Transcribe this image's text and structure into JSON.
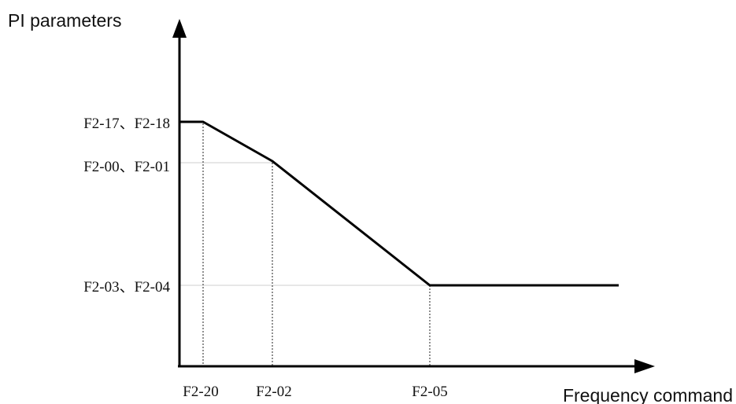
{
  "y_axis": {
    "title": "PI parameters"
  },
  "x_axis": {
    "title": "Frequency command"
  },
  "y_levels": [
    {
      "label": "F2-17、F2-18",
      "level": "high"
    },
    {
      "label": "F2-00、F2-01",
      "level": "mid"
    },
    {
      "label": "F2-03、F2-04",
      "level": "low"
    }
  ],
  "x_points": [
    {
      "label": "F2-20"
    },
    {
      "label": "F2-02"
    },
    {
      "label": "F2-05"
    }
  ],
  "colors": {
    "line": "#000000",
    "text": "#111111",
    "guide": "#cfcfcf"
  }
}
